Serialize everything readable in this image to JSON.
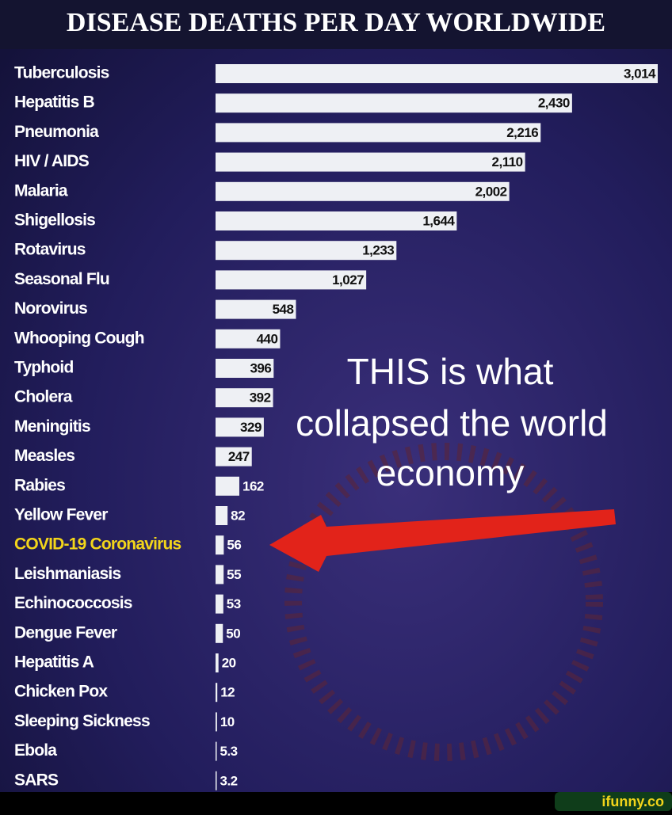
{
  "chart_data": {
    "type": "barh",
    "title": "DISEASE DEATHS PER DAY WORLDWIDE",
    "categories": [
      "Tuberculosis",
      "Hepatitis B",
      "Pneumonia",
      "HIV / AIDS",
      "Malaria",
      "Shigellosis",
      "Rotavirus",
      "Seasonal Flu",
      "Norovirus",
      "Whooping Cough",
      "Typhoid",
      "Cholera",
      "Meningitis",
      "Measles",
      "Rabies",
      "Yellow Fever",
      "COVID-19 Coronavirus",
      "Leishmaniasis",
      "Echinococcosis",
      "Dengue Fever",
      "Hepatitis A",
      "Chicken Pox",
      "Sleeping Sickness",
      "Ebola",
      "SARS"
    ],
    "values": [
      3014,
      2430,
      2216,
      2110,
      2002,
      1644,
      1233,
      1027,
      548,
      440,
      396,
      392,
      329,
      247,
      162,
      82,
      56,
      55,
      53,
      50,
      20,
      12,
      10,
      5.3,
      3.2
    ],
    "value_labels": [
      "3,014",
      "2,430",
      "2,216",
      "2,110",
      "2,002",
      "1,644",
      "1,233",
      "1,027",
      "548",
      "440",
      "396",
      "392",
      "329",
      "247",
      "162",
      "82",
      "56",
      "55",
      "53",
      "50",
      "20",
      "12",
      "10",
      "5.3",
      "3.2"
    ],
    "color": "#eef0f4",
    "highlight": 16,
    "highlight_color": "#f3d51a",
    "annotation": [
      "THIS is what",
      "collapsed the world",
      "economy"
    ],
    "watermark": "ifunny.co"
  }
}
